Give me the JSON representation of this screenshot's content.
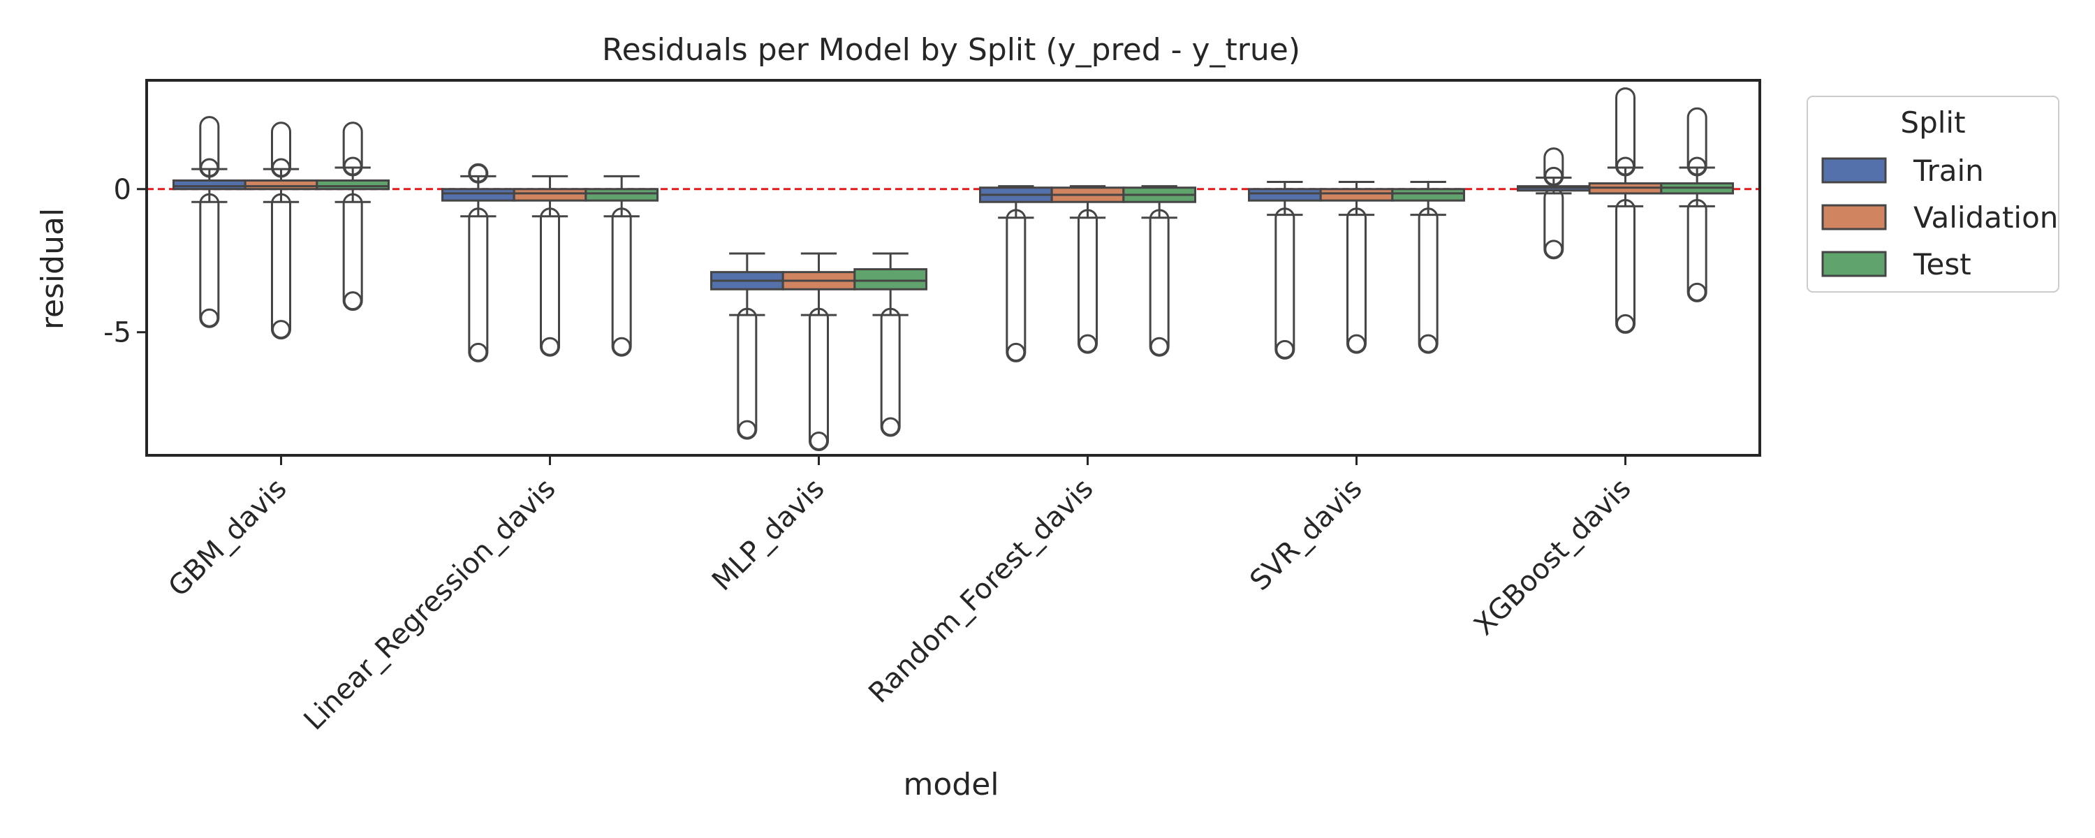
{
  "chart_data": {
    "type": "box",
    "title": "Residuals per Model by Split (y_pred - y_true)",
    "xlabel": "model",
    "ylabel": "residual",
    "ylim": [
      -9.3,
      3.8
    ],
    "yticks": [
      0,
      -5
    ],
    "ytick_labels": [
      "0",
      "-5"
    ],
    "reference_line": {
      "y": 0,
      "color": "#e31a1c",
      "style": "dashed"
    },
    "categories": [
      "GBM_davis",
      "Linear_Regression_davis",
      "MLP_davis",
      "Random_Forest_davis",
      "SVR_davis",
      "XGBoost_davis"
    ],
    "legend": {
      "title": "Split",
      "position": "outside-right"
    },
    "series": [
      {
        "name": "Train",
        "color": "#5471ab",
        "boxes": [
          {
            "whislo": -0.45,
            "q1": 0.0,
            "med": 0.1,
            "q3": 0.3,
            "whishi": 0.7,
            "outliers_low": [
              -0.5,
              -4.5
            ],
            "outliers_high": [
              0.75,
              2.2
            ]
          },
          {
            "whislo": -0.95,
            "q1": -0.4,
            "med": -0.15,
            "q3": 0.0,
            "whishi": 0.45,
            "outliers_low": [
              -1.0,
              -5.7
            ],
            "outliers_high": [
              0.55,
              0.55
            ]
          },
          {
            "whislo": -4.4,
            "q1": -3.5,
            "med": -3.2,
            "q3": -2.9,
            "whishi": -2.25,
            "outliers_low": [
              -4.5,
              -8.4
            ],
            "outliers_high": null
          },
          {
            "whislo": -1.0,
            "q1": -0.45,
            "med": -0.2,
            "q3": 0.05,
            "whishi": 0.1,
            "outliers_low": [
              -1.05,
              -5.7
            ],
            "outliers_high": null
          },
          {
            "whislo": -0.9,
            "q1": -0.4,
            "med": -0.15,
            "q3": 0.0,
            "whishi": 0.25,
            "outliers_low": [
              -1.0,
              -5.6
            ],
            "outliers_high": null
          },
          {
            "whislo": -0.15,
            "q1": -0.05,
            "med": 0.05,
            "q3": 0.1,
            "whishi": 0.4,
            "outliers_low": [
              -0.3,
              -2.1
            ],
            "outliers_high": [
              0.45,
              1.1
            ]
          }
        ]
      },
      {
        "name": "Validation",
        "color": "#d0845f",
        "boxes": [
          {
            "whislo": -0.45,
            "q1": 0.0,
            "med": 0.1,
            "q3": 0.3,
            "whishi": 0.7,
            "outliers_low": [
              -0.5,
              -4.9
            ],
            "outliers_high": [
              0.75,
              2.0
            ]
          },
          {
            "whislo": -0.95,
            "q1": -0.4,
            "med": -0.15,
            "q3": 0.0,
            "whishi": 0.45,
            "outliers_low": [
              -1.0,
              -5.5
            ],
            "outliers_high": null
          },
          {
            "whislo": -4.4,
            "q1": -3.5,
            "med": -3.2,
            "q3": -2.9,
            "whishi": -2.25,
            "outliers_low": [
              -4.5,
              -8.8
            ],
            "outliers_high": null
          },
          {
            "whislo": -1.0,
            "q1": -0.45,
            "med": -0.2,
            "q3": 0.05,
            "whishi": 0.1,
            "outliers_low": [
              -1.05,
              -5.4
            ],
            "outliers_high": null
          },
          {
            "whislo": -0.9,
            "q1": -0.4,
            "med": -0.15,
            "q3": 0.0,
            "whishi": 0.25,
            "outliers_low": [
              -1.0,
              -5.4
            ],
            "outliers_high": null
          },
          {
            "whislo": -0.6,
            "q1": -0.15,
            "med": 0.05,
            "q3": 0.2,
            "whishi": 0.75,
            "outliers_low": [
              -0.7,
              -4.7
            ],
            "outliers_high": [
              0.8,
              3.2
            ]
          }
        ]
      },
      {
        "name": "Test",
        "color": "#60a36c",
        "boxes": [
          {
            "whislo": -0.45,
            "q1": 0.0,
            "med": 0.1,
            "q3": 0.3,
            "whishi": 0.75,
            "outliers_low": [
              -0.5,
              -3.9
            ],
            "outliers_high": [
              0.8,
              2.0
            ]
          },
          {
            "whislo": -0.95,
            "q1": -0.4,
            "med": -0.15,
            "q3": 0.0,
            "whishi": 0.45,
            "outliers_low": [
              -1.0,
              -5.5
            ],
            "outliers_high": null
          },
          {
            "whislo": -4.4,
            "q1": -3.5,
            "med": -3.2,
            "q3": -2.8,
            "whishi": -2.25,
            "outliers_low": [
              -4.5,
              -8.3
            ],
            "outliers_high": null
          },
          {
            "whislo": -1.0,
            "q1": -0.45,
            "med": -0.2,
            "q3": 0.05,
            "whishi": 0.1,
            "outliers_low": [
              -1.05,
              -5.5
            ],
            "outliers_high": null
          },
          {
            "whislo": -0.9,
            "q1": -0.4,
            "med": -0.15,
            "q3": 0.0,
            "whishi": 0.25,
            "outliers_low": [
              -1.0,
              -5.4
            ],
            "outliers_high": null
          },
          {
            "whislo": -0.6,
            "q1": -0.15,
            "med": 0.05,
            "q3": 0.2,
            "whishi": 0.75,
            "outliers_low": [
              -0.7,
              -3.6
            ],
            "outliers_high": [
              0.8,
              2.5
            ]
          }
        ]
      }
    ]
  }
}
